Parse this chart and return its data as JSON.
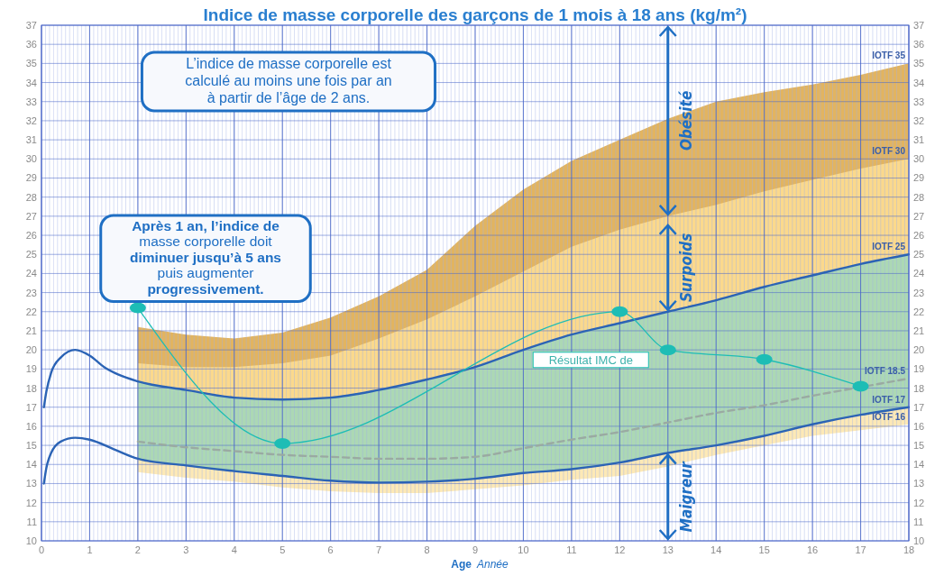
{
  "chart_data": {
    "type": "area",
    "title": "Indice de masse corporelle des garçons de 1 mois à 18 ans (kg/m²)",
    "xlabel": "Age",
    "xlim": [
      0,
      18
    ],
    "xticks": [
      0,
      1,
      2,
      3,
      4,
      5,
      6,
      7,
      8,
      9,
      10,
      11,
      12,
      13,
      14,
      15,
      16,
      17,
      18
    ],
    "ylim": [
      10,
      37
    ],
    "yticks": [
      10,
      11,
      12,
      13,
      14,
      15,
      16,
      17,
      18,
      19,
      20,
      21,
      22,
      23,
      24,
      25,
      26,
      27,
      28,
      29,
      30,
      31,
      32,
      33,
      34,
      35,
      36,
      37
    ],
    "y2lim": [
      10,
      37
    ],
    "y2ticks": [
      10,
      11,
      12,
      13,
      14,
      15,
      16,
      17,
      18,
      19,
      20,
      21,
      22,
      23,
      24,
      25,
      26,
      27,
      28,
      29,
      30,
      31,
      32,
      33,
      34,
      35,
      36,
      37
    ],
    "grid": true,
    "series": [
      {
        "name": "IOTF 35",
        "color": "#e2b460",
        "x": [
          2,
          3,
          4,
          5,
          6,
          7,
          8,
          9,
          10,
          11,
          12,
          13,
          14,
          15,
          16,
          17,
          18
        ],
        "values": [
          21.2,
          20.8,
          20.6,
          20.9,
          21.7,
          22.8,
          24.2,
          26.5,
          28.4,
          29.9,
          31.0,
          32.1,
          33.0,
          33.5,
          33.9,
          34.4,
          35.0
        ]
      },
      {
        "name": "IOTF 30",
        "color": "#fbd98c",
        "x": [
          2,
          3,
          4,
          5,
          6,
          7,
          8,
          9,
          10,
          11,
          12,
          13,
          14,
          15,
          16,
          17,
          18
        ],
        "values": [
          19.3,
          19.1,
          19.1,
          19.3,
          19.7,
          20.6,
          21.6,
          22.8,
          24.1,
          25.4,
          26.3,
          27.0,
          27.6,
          28.3,
          28.9,
          29.5,
          30.0
        ]
      },
      {
        "color": "#acd8b4",
        "x": [
          2,
          3,
          4,
          5,
          6,
          7,
          8,
          9,
          10,
          11,
          12,
          13,
          14,
          15,
          16,
          17,
          18
        ],
        "values": [
          18.35,
          17.9,
          17.5,
          17.4,
          17.5,
          17.9,
          18.45,
          19.1,
          20.0,
          20.8,
          21.4,
          22.0,
          22.6,
          23.3,
          23.9,
          24.5,
          25.0
        ]
      },
      {
        "color": "#fde9b6",
        "x": [
          2,
          3,
          4,
          5,
          6,
          7,
          8,
          9,
          10,
          11,
          12,
          13,
          14,
          15,
          16,
          17,
          18
        ],
        "values": [
          14.3,
          13.95,
          13.65,
          13.4,
          13.15,
          13.05,
          13.1,
          13.25,
          13.55,
          13.75,
          14.1,
          14.6,
          15.0,
          15.5,
          16.1,
          16.6,
          17.0
        ]
      },
      {
        "name": "IOTF 16",
        "color": "#ffffff",
        "x": [
          2,
          3,
          4,
          5,
          6,
          7,
          8,
          9,
          10,
          11,
          12,
          13,
          14,
          15,
          16,
          17,
          18
        ],
        "values": [
          13.6,
          13.3,
          13.1,
          12.8,
          12.6,
          12.5,
          12.5,
          12.7,
          12.9,
          13.2,
          13.4,
          13.9,
          14.5,
          15.0,
          15.5,
          15.8,
          16.1
        ]
      },
      {
        "name": "IOTF 18.5",
        "type": "line",
        "line_style": "dashed",
        "color": "#9aaaa2",
        "x": [
          2,
          3,
          4,
          5,
          6,
          7,
          8,
          9,
          10,
          11,
          12,
          13,
          14,
          15,
          16,
          17,
          18
        ],
        "values": [
          15.2,
          14.9,
          14.7,
          14.5,
          14.4,
          14.3,
          14.3,
          14.4,
          14.85,
          15.3,
          15.7,
          16.2,
          16.7,
          17.1,
          17.6,
          18.05,
          18.5
        ]
      },
      {
        "name": "IOTF 25",
        "type": "line",
        "color": "#2b63b5",
        "x": [
          0.05,
          0.1,
          0.2,
          0.4,
          0.7,
          1,
          1.3,
          1.6,
          2,
          3,
          4,
          5,
          6,
          7,
          8,
          9,
          10,
          11,
          12,
          13,
          14,
          15,
          16,
          17,
          18
        ],
        "values": [
          17.0,
          17.8,
          18.8,
          19.6,
          20.0,
          19.7,
          19.1,
          18.7,
          18.35,
          17.9,
          17.5,
          17.4,
          17.5,
          17.9,
          18.45,
          19.1,
          20.0,
          20.8,
          21.4,
          22.0,
          22.6,
          23.3,
          23.9,
          24.5,
          25.0
        ]
      },
      {
        "name": "IOTF 17",
        "type": "line",
        "color": "#2b63b5",
        "x": [
          0.05,
          0.1,
          0.2,
          0.4,
          0.7,
          1,
          1.5,
          2,
          3,
          4,
          5,
          6,
          7,
          8,
          9,
          10,
          11,
          12,
          13,
          14,
          15,
          16,
          17,
          18
        ],
        "values": [
          13.0,
          13.8,
          14.6,
          15.2,
          15.4,
          15.3,
          14.8,
          14.3,
          13.95,
          13.65,
          13.4,
          13.15,
          13.05,
          13.1,
          13.25,
          13.55,
          13.75,
          14.1,
          14.6,
          15.0,
          15.5,
          16.1,
          16.6,
          17.0
        ]
      },
      {
        "type": "line",
        "marker": "circle",
        "color": "#1dbdb5",
        "x": [
          2,
          5,
          12,
          13,
          15,
          17
        ],
        "values": [
          22.2,
          15.1,
          22.0,
          20.0,
          19.5,
          18.1
        ]
      }
    ],
    "annotations": [
      "L’indice de masse corporelle est calculé au moins une fois par an à partir de l’âge de 2 ans.",
      "Après 1 an, l’indice de masse corporelle doit diminuer jusqu’à 5 ans puis augmenter progressivement.",
      "Année",
      "Résultat IMC de",
      "Obésité",
      "Surpoids",
      "Maigreur"
    ]
  }
}
